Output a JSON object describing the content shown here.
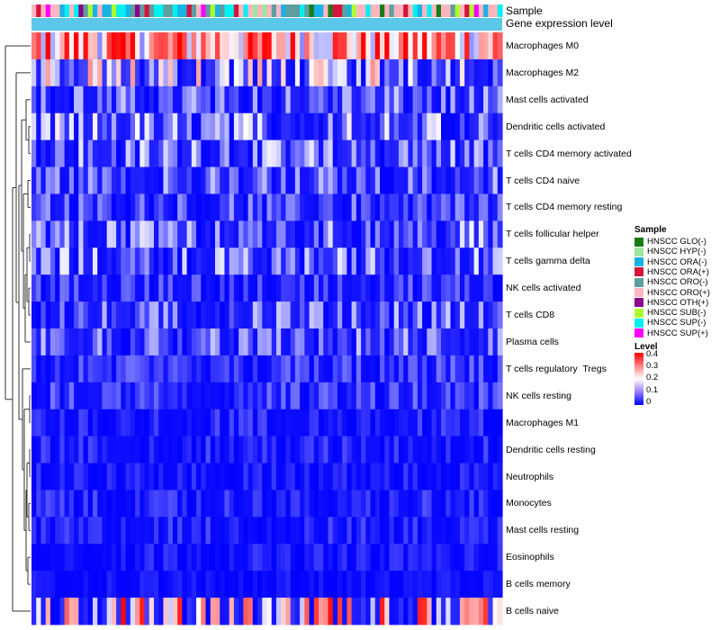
{
  "chart_data": {
    "type": "heatmap",
    "annotations": [
      "Sample",
      "Gene expression level"
    ],
    "rows": [
      "Macrophages M0",
      "Macrophages M2",
      "Mast cells activated",
      "Dendritic cells activated",
      "T cells CD4 memory activated",
      "T cells CD4 naive",
      "T cells CD4 memory resting",
      "T cells follicular helper",
      "T cells gamma delta",
      "NK cells activated",
      "T cells CD8",
      "Plasma cells",
      "T cells regulatory  Tregs",
      "NK cells resting",
      "Macrophages M1",
      "Dendritic cells resting",
      "Neutrophils",
      "Monocytes",
      "Mast cells resting",
      "Eosinophils",
      "B cells memory",
      "B cells naive"
    ],
    "row_mean_levels": [
      0.28,
      0.09,
      0.05,
      0.07,
      0.06,
      0.05,
      0.04,
      0.06,
      0.06,
      0.03,
      0.05,
      0.05,
      0.03,
      0.03,
      0.02,
      0.02,
      0.015,
      0.02,
      0.02,
      0.015,
      0.01,
      0.12
    ],
    "n_samples": 100,
    "legend": {
      "sample_title": "Sample",
      "samples": [
        {
          "name": "HNSCC GLO(-)",
          "color": "#1a7a1a"
        },
        {
          "name": "HNSCC HYP(-)",
          "color": "#a0e6a0"
        },
        {
          "name": "HNSCC ORA(-)",
          "color": "#19b2e6"
        },
        {
          "name": "HNSCC ORA(+)",
          "color": "#d4143c"
        },
        {
          "name": "HNSCC ORO(-)",
          "color": "#5f9ea0"
        },
        {
          "name": "HNSCC ORO(+)",
          "color": "#ffb6c1"
        },
        {
          "name": "HNSCC OTH(+)",
          "color": "#8b008b"
        },
        {
          "name": "HNSCC SUB(-)",
          "color": "#adff2f"
        },
        {
          "name": "HNSCC SUP(-)",
          "color": "#00f0f0"
        },
        {
          "name": "HNSCC SUP(+)",
          "color": "#ff00ff"
        }
      ],
      "level_title": "Level",
      "level_ticks": [
        "0.4",
        "0.3",
        "0.2",
        "0.1",
        "0"
      ],
      "level_range": [
        0,
        0.4
      ]
    },
    "expression_color": "#5bc8ea"
  }
}
